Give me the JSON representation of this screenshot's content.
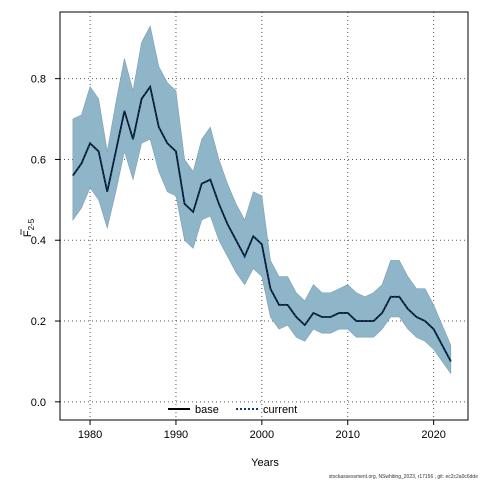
{
  "chart_data": {
    "type": "area",
    "xlabel": "Years",
    "ylabel_main": "F",
    "ylabel_sub": "2-5",
    "xlim": [
      1976.5,
      1024
    ],
    "ylim": [
      -0.045,
      0.965
    ],
    "x_ticks": [
      1980,
      1990,
      2000,
      2010,
      2020
    ],
    "y_ticks": [
      0.0,
      0.2,
      0.4,
      0.6,
      0.8
    ],
    "y_tick_labels": [
      "0.0",
      "0.2",
      "0.4",
      "0.6",
      "0.8"
    ],
    "grid": true,
    "legend_placement": "bottom-center",
    "years": [
      1978,
      1979,
      1980,
      1981,
      1982,
      1983,
      1984,
      1985,
      1986,
      1987,
      1988,
      1989,
      1990,
      1991,
      1992,
      1993,
      1994,
      1995,
      1996,
      1997,
      1998,
      1999,
      2000,
      2001,
      2002,
      2003,
      2004,
      2005,
      2006,
      2007,
      2008,
      2009,
      2010,
      2011,
      2012,
      2013,
      2014,
      2015,
      2016,
      2017,
      2018,
      2019,
      2020,
      2021,
      2022
    ],
    "series": [
      {
        "name": "base",
        "color": "#000000",
        "style": "solid",
        "values": [
          0.56,
          0.59,
          0.64,
          0.62,
          0.52,
          0.62,
          0.72,
          0.65,
          0.75,
          0.78,
          0.68,
          0.64,
          0.62,
          0.49,
          0.47,
          0.54,
          0.55,
          0.49,
          0.44,
          0.4,
          0.36,
          0.41,
          0.39,
          0.28,
          0.24,
          0.24,
          0.21,
          0.19,
          0.22,
          0.21,
          0.21,
          0.22,
          0.22,
          0.2,
          0.2,
          0.2,
          0.22,
          0.26,
          0.26,
          0.23,
          0.21,
          0.2,
          0.18,
          0.14,
          0.1
        ]
      },
      {
        "name": "current",
        "color": "#0a3d6b",
        "style": "dotted",
        "values": [
          0.56,
          0.59,
          0.64,
          0.62,
          0.52,
          0.62,
          0.72,
          0.65,
          0.75,
          0.78,
          0.68,
          0.64,
          0.62,
          0.49,
          0.47,
          0.54,
          0.55,
          0.49,
          0.44,
          0.4,
          0.36,
          0.41,
          0.39,
          0.28,
          0.24,
          0.24,
          0.21,
          0.19,
          0.22,
          0.21,
          0.21,
          0.22,
          0.22,
          0.2,
          0.2,
          0.2,
          0.22,
          0.26,
          0.26,
          0.23,
          0.21,
          0.2,
          0.18,
          0.14,
          0.1
        ]
      }
    ],
    "band": {
      "color": "#8fb5c9",
      "lower": [
        0.45,
        0.48,
        0.53,
        0.5,
        0.43,
        0.52,
        0.62,
        0.55,
        0.64,
        0.65,
        0.57,
        0.52,
        0.51,
        0.4,
        0.38,
        0.45,
        0.46,
        0.4,
        0.36,
        0.32,
        0.29,
        0.33,
        0.31,
        0.21,
        0.18,
        0.19,
        0.16,
        0.15,
        0.18,
        0.17,
        0.17,
        0.18,
        0.18,
        0.16,
        0.16,
        0.16,
        0.18,
        0.21,
        0.21,
        0.18,
        0.16,
        0.15,
        0.13,
        0.1,
        0.07
      ],
      "upper": [
        0.7,
        0.71,
        0.78,
        0.75,
        0.62,
        0.74,
        0.85,
        0.77,
        0.89,
        0.93,
        0.83,
        0.79,
        0.77,
        0.6,
        0.57,
        0.65,
        0.68,
        0.6,
        0.54,
        0.49,
        0.45,
        0.52,
        0.51,
        0.35,
        0.31,
        0.31,
        0.27,
        0.25,
        0.29,
        0.27,
        0.27,
        0.28,
        0.29,
        0.27,
        0.26,
        0.27,
        0.29,
        0.35,
        0.35,
        0.31,
        0.28,
        0.28,
        0.24,
        0.19,
        0.14
      ]
    }
  },
  "footer_text": "stockassessment.org, NSwhiting_2023, r17156 , git: ec2c2a0c6dde"
}
